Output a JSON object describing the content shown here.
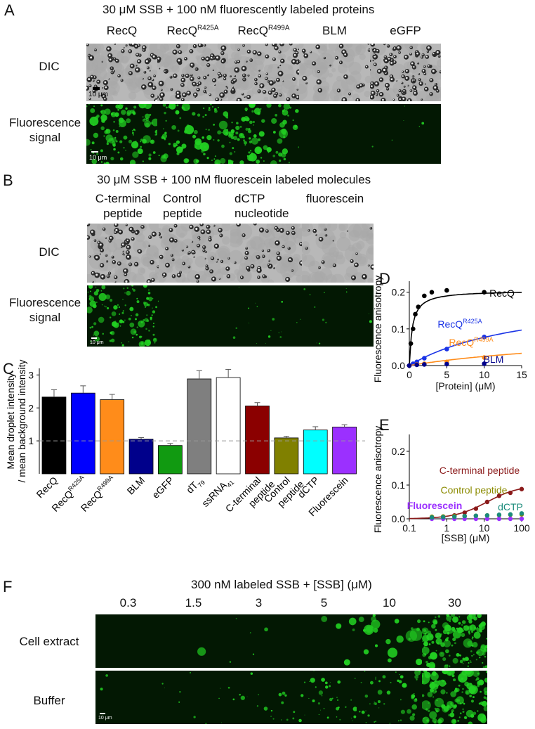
{
  "panelA": {
    "letter": "A",
    "title": "30 μM SSB + 100 nM fluorescently labeled proteins",
    "columns": [
      {
        "base": "RecQ",
        "sup": ""
      },
      {
        "base": "RecQ",
        "sup": "R425A"
      },
      {
        "base": "RecQ",
        "sup": "R499A"
      },
      {
        "base": "BLM",
        "sup": ""
      },
      {
        "base": "eGFP",
        "sup": ""
      }
    ],
    "row_dic": "DIC",
    "row_fluor": [
      "Fluorescence",
      "signal"
    ],
    "scale_dic": "10 μm",
    "scale_fluor": "10 μm"
  },
  "panelB": {
    "letter": "B",
    "title": "30 μM SSB + 100 nM fluorescein labeled molecules",
    "columns": [
      [
        "C-terminal",
        "peptide"
      ],
      [
        "Control",
        "peptide"
      ],
      [
        "dCTP",
        "nucleotide"
      ],
      [
        "fluorescein",
        ""
      ]
    ],
    "row_dic": "DIC",
    "row_fluor": [
      "Fluorescence",
      "signal"
    ],
    "scale_fluor": "10 μm"
  },
  "panelC": {
    "letter": "C",
    "chart_data": {
      "type": "bar",
      "ylabel": [
        "Mean droplet intensity",
        "/ mean background intensity"
      ],
      "ylim": [
        0,
        3.2
      ],
      "yticks": [
        "1",
        "2",
        "3"
      ],
      "reference_line": 1,
      "bars": [
        {
          "label": "RecQ",
          "sup": "",
          "sub": "",
          "value": 2.33,
          "err": 0.22,
          "color": "#000000"
        },
        {
          "label": "RecQ",
          "sup": "R425A",
          "sub": "",
          "value": 2.45,
          "err": 0.22,
          "color": "#0000ff"
        },
        {
          "label": "RecQ",
          "sup": "R499A",
          "sub": "",
          "value": 2.25,
          "err": 0.16,
          "color": "#ff8c1a"
        },
        {
          "label": "BLM",
          "sup": "",
          "sub": "",
          "value": 1.05,
          "err": 0.05,
          "color": "#00008b"
        },
        {
          "label": "eGFP",
          "sup": "",
          "sub": "",
          "value": 0.86,
          "err": 0.06,
          "color": "#119a11"
        },
        {
          "label": "dT",
          "sup": "",
          "sub": "79",
          "value": 2.88,
          "err": 0.25,
          "color": "#7f7f7f"
        },
        {
          "label": "ssRNA",
          "sup": "",
          "sub": "41",
          "value": 2.92,
          "err": 0.25,
          "color": "#ffffff"
        },
        {
          "label": "C-terminal peptide",
          "sup": "",
          "sub": "",
          "value": 2.06,
          "err": 0.1,
          "color": "#8b0000"
        },
        {
          "label": "Control peptide",
          "sup": "",
          "sub": "",
          "value": 1.09,
          "err": 0.05,
          "color": "#808000"
        },
        {
          "label": "dCTP",
          "sup": "",
          "sub": "",
          "value": 1.33,
          "err": 0.1,
          "color": "#00ffff"
        },
        {
          "label": "Fluorescein",
          "sup": "",
          "sub": "",
          "value": 1.42,
          "err": 0.07,
          "color": "#9b30ff"
        }
      ]
    }
  },
  "panelD": {
    "letter": "D",
    "chart_data": {
      "type": "scatter",
      "xlabel": "[Protein] (μM)",
      "ylabel": "Fluorescence anisotropy",
      "xlim": [
        0,
        15
      ],
      "ylim": [
        0,
        0.23
      ],
      "xticks": [
        0,
        5,
        10,
        15
      ],
      "yticks": [
        0,
        0.1,
        0.2
      ],
      "series": [
        {
          "name": "RecQ",
          "sup": "",
          "color": "#000000",
          "x": [
            0,
            0.2,
            0.5,
            0.8,
            1.2,
            2,
            3,
            5,
            10
          ],
          "y": [
            0,
            0.06,
            0.1,
            0.14,
            0.16,
            0.19,
            0.2,
            0.205,
            0.2
          ],
          "fit": "hyperbolic",
          "fit_max": 0.205,
          "fit_kd": 0.4
        },
        {
          "name": "RecQ",
          "sup": "R425A",
          "color": "#1a33e6",
          "x": [
            0,
            0.5,
            1,
            2,
            5,
            10
          ],
          "y": [
            0,
            0.005,
            0.01,
            0.02,
            0.045,
            0.078
          ],
          "fit": "hyperbolic",
          "fit_max": 0.2,
          "fit_kd": 16
        },
        {
          "name": "RecQ",
          "sup": "R499A",
          "color": "#ff8c1a",
          "x": [
            0,
            1,
            2,
            5,
            10
          ],
          "y": [
            0,
            0.003,
            0.005,
            0.01,
            0.022
          ],
          "fit": "hyperbolic",
          "fit_max": 0.1,
          "fit_kd": 30
        },
        {
          "name": "BLM",
          "sup": "",
          "color": "#00008b",
          "x": [
            0,
            1,
            2,
            5,
            10
          ],
          "y": [
            0,
            0.002,
            0.003,
            0.004,
            0.005
          ],
          "fit": "none"
        }
      ]
    }
  },
  "panelE": {
    "letter": "E",
    "chart_data": {
      "type": "scatter",
      "xscale": "log",
      "xlabel": "[SSB] (μM)",
      "ylabel": "Fluorescence anisotropy",
      "xlim": [
        0.1,
        100
      ],
      "ylim": [
        0,
        0.25
      ],
      "xticks": [
        "0.1",
        "1",
        "10",
        "100"
      ],
      "yticks": [
        0,
        0.1,
        0.2
      ],
      "series": [
        {
          "name": "C-terminal peptide",
          "color": "#8b1a1a",
          "x": [
            0.4,
            0.8,
            1.6,
            3,
            6,
            12,
            25,
            50,
            100
          ],
          "y": [
            0.003,
            0.005,
            0.01,
            0.018,
            0.03,
            0.05,
            0.068,
            0.077,
            0.088
          ],
          "fit": "sigmoid"
        },
        {
          "name": "Control peptide",
          "color": "#8b8b00",
          "x": [
            0.4,
            0.8,
            1.6,
            3,
            6,
            12,
            25,
            50,
            100
          ],
          "y": [
            0.006,
            0.007,
            0.008,
            0.008,
            0.009,
            0.01,
            0.011,
            0.012,
            0.013
          ],
          "fit": "none"
        },
        {
          "name": "Fluorescein",
          "color": "#9b30ff",
          "x": [
            0.4,
            0.8,
            1.6,
            3,
            6,
            12,
            25,
            50,
            100
          ],
          "y": [
            0.0,
            0.0,
            0.0,
            0.0,
            0.0,
            0.0,
            0.0,
            0.0,
            0.0
          ],
          "fit": "none",
          "bold": true
        },
        {
          "name": "dCTP",
          "color": "#1a8b7a",
          "x": [
            0.4,
            0.8,
            1.6,
            3,
            6,
            12,
            25,
            50,
            100
          ],
          "y": [
            0.004,
            0.005,
            0.006,
            0.008,
            0.009,
            0.01,
            0.012,
            0.013,
            0.016
          ],
          "fit": "none"
        }
      ]
    }
  },
  "panelF": {
    "letter": "F",
    "title": "300 nM labeled SSB + [SSB] (μM)",
    "columns": [
      "0.3",
      "1.5",
      "3",
      "5",
      "10",
      "30"
    ],
    "row_extract": "Cell extract",
    "row_buffer": "Buffer",
    "scale": "10 μm"
  }
}
